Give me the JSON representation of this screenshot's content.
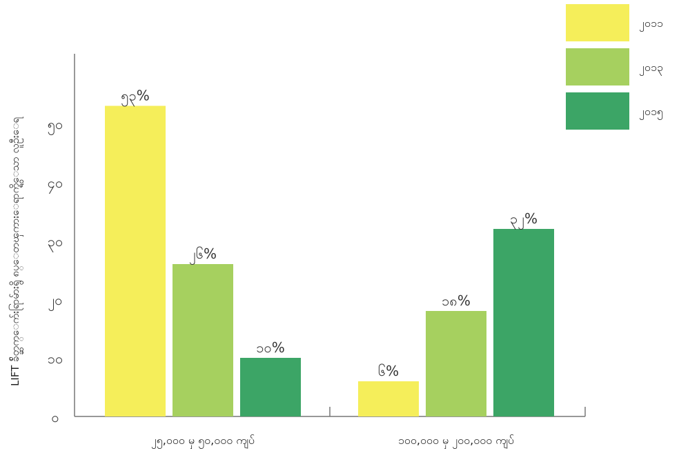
{
  "chart_data": {
    "type": "bar",
    "title": "",
    "xlabel": "",
    "ylabel": "LIFT ခ်ိတ္ဆက္ေက်းရြာမ်ားရွိ ၈ပ္ေတၾကားေရာက္ရွိေသာ လူဦးေရ",
    "ylim": [
      0,
      60
    ],
    "yticks": [
      0,
      10,
      20,
      30,
      40,
      50
    ],
    "ytick_labels": [
      "၀",
      "၁၀",
      "၂၀",
      "၃၀",
      "၄၀",
      "၅၀"
    ],
    "categories": [
      "၂၅,၀၀၀ မှ ၅၀,၀၀၀ ကျပ်",
      "၁၀၀,၀၀၀ မှ ၂၀၀,၀၀၀ ကျပ်"
    ],
    "series": [
      {
        "name": "၂၀၁၁",
        "color": "#f5ee5a",
        "values": [
          53,
          6
        ],
        "labels": [
          "၅၃%",
          "၆%"
        ]
      },
      {
        "name": "၂၀၁၃",
        "color": "#a6d05f",
        "values": [
          26,
          18
        ],
        "labels": [
          "၂၆%",
          "၁၈%"
        ]
      },
      {
        "name": "၂၀၁၅",
        "color": "#3ca566",
        "values": [
          10,
          32
        ],
        "labels": [
          "၁၀%",
          "၃၂%"
        ]
      }
    ],
    "grid": false,
    "legend": "top-right"
  }
}
